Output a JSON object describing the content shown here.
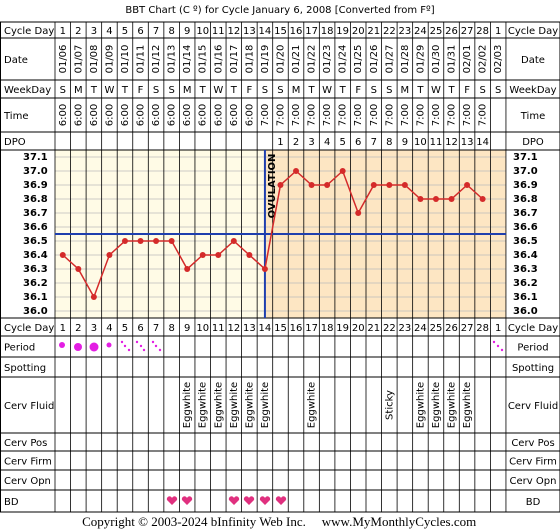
{
  "title": "BBT Chart (C º) for Cycle January 6, 2008  [Converted from Fº]",
  "rows": {
    "cycle_day": "Cycle Day",
    "date": "Date",
    "weekday": "WeekDay",
    "time": "Time",
    "dpo": "DPO",
    "period": "Period",
    "spotting": "Spotting",
    "cerv_fluid": "Cerv Fluid",
    "cerv_pos": "Cerv Pos",
    "cerv_firm": "Cerv Firm",
    "cerv_opn": "Cerv Opn",
    "bd": "BD"
  },
  "cycle_days": [
    1,
    2,
    3,
    4,
    5,
    6,
    7,
    8,
    9,
    10,
    11,
    12,
    13,
    14,
    15,
    16,
    17,
    18,
    19,
    20,
    21,
    22,
    23,
    24,
    25,
    26,
    27,
    28,
    1
  ],
  "dates": [
    "01/06",
    "01/07",
    "01/08",
    "01/09",
    "01/10",
    "01/11",
    "01/12",
    "01/13",
    "01/14",
    "01/15",
    "01/16",
    "01/17",
    "01/18",
    "01/19",
    "01/20",
    "01/21",
    "01/22",
    "01/23",
    "01/24",
    "01/25",
    "01/26",
    "01/27",
    "01/28",
    "01/29",
    "01/30",
    "01/31",
    "02/01",
    "02/02",
    "02/03"
  ],
  "weekdays": [
    "S",
    "M",
    "T",
    "W",
    "T",
    "F",
    "S",
    "S",
    "M",
    "T",
    "W",
    "T",
    "F",
    "S",
    "S",
    "M",
    "T",
    "W",
    "T",
    "F",
    "S",
    "S",
    "M",
    "T",
    "W",
    "T",
    "F",
    "S",
    "S"
  ],
  "times": [
    "6:00",
    "6:00",
    "6:00",
    "6:00",
    "6:00",
    "6:00",
    "6:00",
    "6:00",
    "6:00",
    "6:00",
    "6:00",
    "6:00",
    "6:00",
    "7:00",
    "7:00",
    "7:00",
    "7:00",
    "7:00",
    "7:00",
    "7:00",
    "7:00",
    "7:00",
    "7:00",
    "7:00",
    "7:00",
    "7:00",
    "7:00",
    "7:00",
    null
  ],
  "dpo": [
    null,
    null,
    null,
    null,
    null,
    null,
    null,
    null,
    null,
    null,
    null,
    null,
    null,
    null,
    1,
    2,
    3,
    4,
    5,
    6,
    7,
    8,
    9,
    10,
    11,
    12,
    13,
    14,
    null
  ],
  "cerv_fluid": [
    null,
    null,
    null,
    null,
    null,
    null,
    null,
    null,
    "Eggwhite",
    "Eggwhite",
    "Eggwhite",
    "Eggwhite",
    "Eggwhite",
    "Eggwhite",
    null,
    null,
    "Eggwhite",
    null,
    null,
    null,
    null,
    "Sticky",
    null,
    "Eggwhite",
    "Eggwhite",
    "Eggwhite",
    "Eggwhite",
    null,
    null
  ],
  "chart_data": {
    "type": "line",
    "color": "#d42a2a",
    "values": [
      36.4,
      36.3,
      36.1,
      36.4,
      36.5,
      36.5,
      36.5,
      36.5,
      36.3,
      36.4,
      36.4,
      36.5,
      36.4,
      36.3,
      36.9,
      37.0,
      36.9,
      36.9,
      37.0,
      36.7,
      36.9,
      36.9,
      36.9,
      36.8,
      36.8,
      36.8,
      36.9,
      36.8,
      null
    ],
    "ylim": [
      35.95,
      37.15
    ],
    "yticks": [
      {
        "value": 36.0,
        "label": "36.0"
      },
      36.1,
      36.2,
      36.3,
      36.4,
      36.5,
      36.6,
      36.7,
      36.8,
      36.9,
      {
        "value": 37.0,
        "label": "37.0"
      },
      37.1
    ],
    "grid": true,
    "coverline": 36.55,
    "coverline_color": "#1f3fae",
    "ovulation_day": 14,
    "ovulation_label": "OVULATION"
  },
  "footer": {
    "copyright": "Copyright © 2003-2024 bInfinity Web Inc.",
    "site": "www.MyMonthlyCycles.com"
  }
}
